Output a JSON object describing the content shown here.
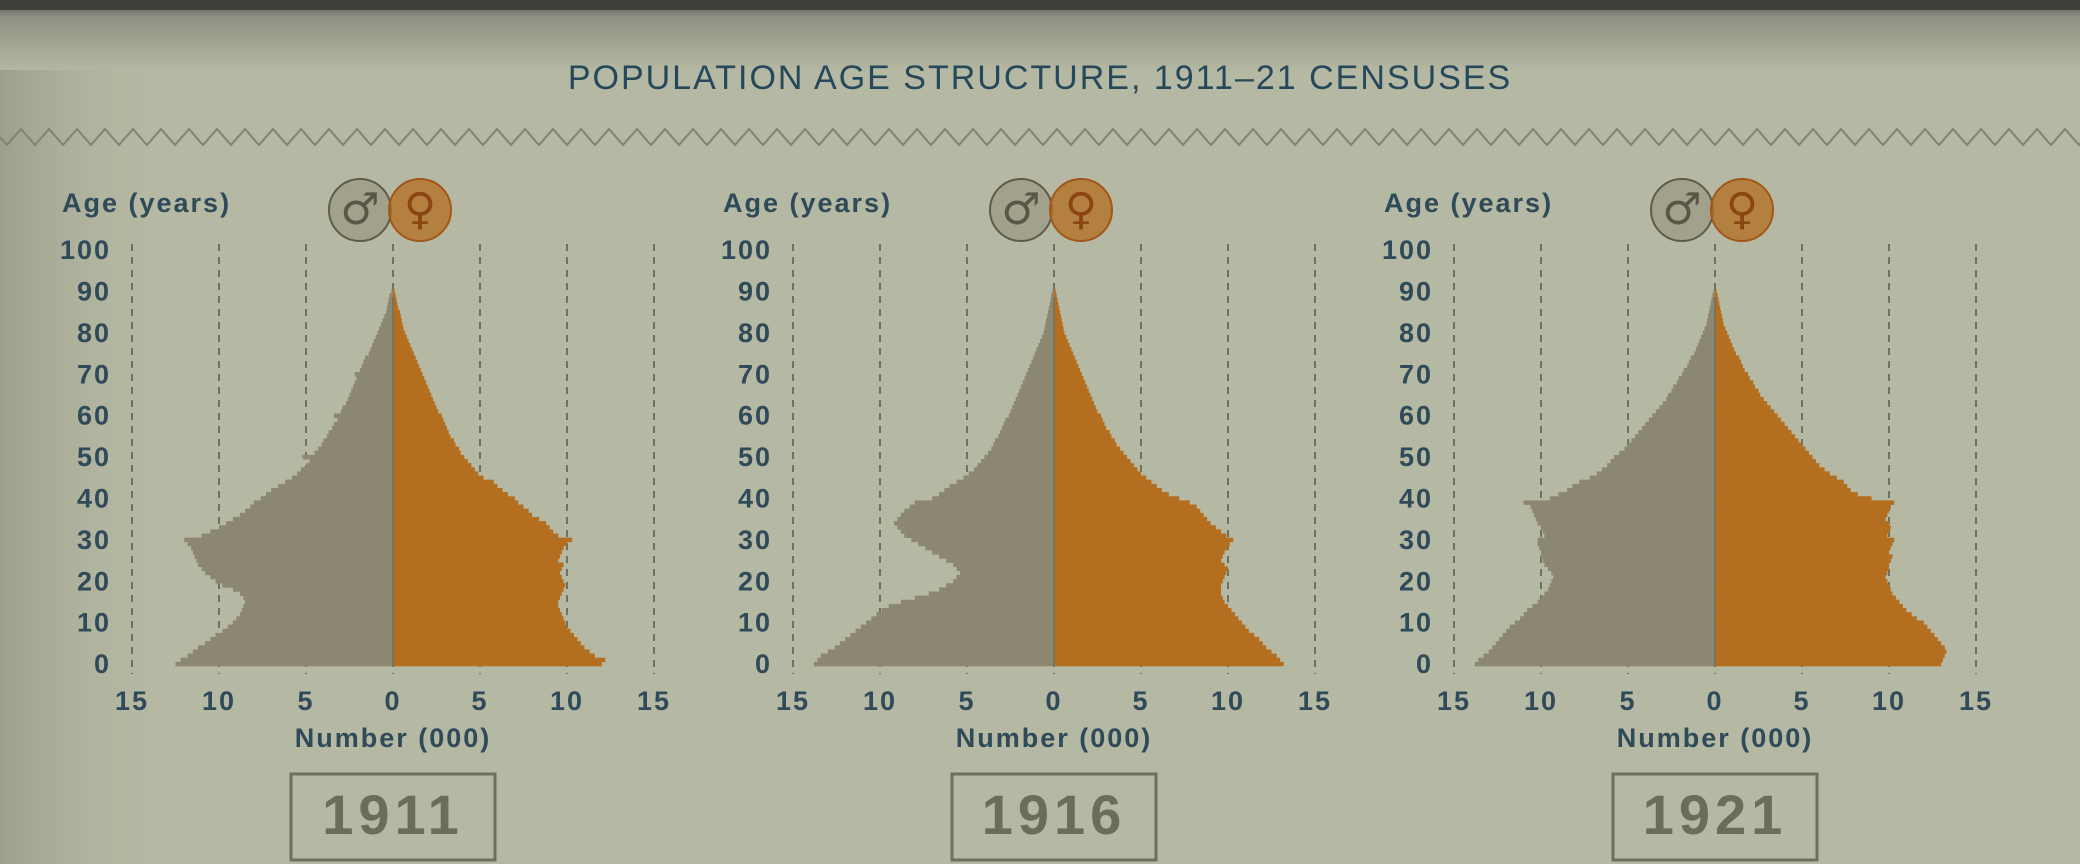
{
  "title": "POPULATION AGE STRUCTURE, 1911–21 CENSUSES",
  "chart_data": [
    {
      "type": "pyramid",
      "title": "1911",
      "x_label": "Number (000)",
      "y_label": "Age (years)",
      "y": [
        0,
        1,
        2,
        3,
        4,
        5,
        6,
        7,
        8,
        9,
        10,
        11,
        12,
        13,
        14,
        15,
        16,
        17,
        18,
        19,
        20,
        21,
        22,
        23,
        24,
        25,
        26,
        27,
        28,
        29,
        30,
        31,
        32,
        33,
        34,
        35,
        36,
        37,
        38,
        39,
        40,
        41,
        42,
        43,
        44,
        45,
        46,
        47,
        48,
        49,
        50,
        51,
        52,
        53,
        54,
        55,
        56,
        57,
        58,
        59,
        60,
        61,
        62,
        63,
        64,
        65,
        66,
        67,
        68,
        69,
        70,
        71,
        72,
        73,
        74,
        75,
        76,
        77,
        78,
        79,
        80,
        81,
        82,
        83,
        84,
        85,
        86,
        87,
        88,
        89,
        90
      ],
      "xlim": [
        -15,
        15
      ],
      "xticks": [
        {
          "value": -15,
          "label": "15"
        },
        {
          "value": -10,
          "label": "10"
        },
        {
          "value": -5,
          "label": "5"
        },
        0,
        5,
        10,
        15
      ],
      "ylim": [
        0,
        100
      ],
      "yticks": [
        0,
        10,
        20,
        30,
        40,
        50,
        60,
        70,
        80,
        90,
        100
      ],
      "grid": true,
      "series": [
        {
          "name": "♂",
          "color": "#8c8770",
          "values": [
            12.5,
            12.2,
            11.8,
            11.5,
            11.2,
            10.8,
            10.5,
            10.2,
            9.8,
            9.5,
            9.2,
            9.0,
            8.8,
            8.7,
            8.6,
            8.5,
            8.6,
            8.8,
            9.2,
            9.8,
            10.2,
            10.5,
            10.8,
            11.0,
            11.2,
            11.3,
            11.4,
            11.5,
            11.6,
            11.8,
            12.0,
            11.0,
            10.5,
            10.0,
            9.6,
            9.2,
            8.8,
            8.5,
            8.2,
            8.0,
            7.6,
            7.3,
            7.0,
            6.6,
            6.2,
            5.8,
            5.5,
            5.3,
            5.0,
            4.8,
            5.2,
            4.5,
            4.3,
            4.1,
            4.0,
            3.8,
            3.7,
            3.5,
            3.4,
            3.2,
            3.4,
            3.0,
            2.9,
            2.7,
            2.6,
            2.5,
            2.4,
            2.3,
            2.2,
            2.1,
            2.2,
            1.9,
            1.8,
            1.7,
            1.6,
            1.4,
            1.3,
            1.2,
            1.1,
            1.0,
            0.9,
            0.8,
            0.7,
            0.6,
            0.5,
            0.4,
            0.35,
            0.3,
            0.25,
            0.2,
            0.1
          ]
        },
        {
          "name": "♀",
          "color": "#b46e1f",
          "values": [
            12.0,
            12.2,
            11.6,
            11.3,
            11.0,
            10.8,
            10.6,
            10.4,
            10.2,
            10.0,
            9.9,
            9.8,
            9.7,
            9.6,
            9.5,
            9.5,
            9.6,
            9.7,
            9.8,
            9.9,
            9.8,
            9.7,
            9.6,
            9.7,
            9.8,
            9.5,
            9.6,
            9.7,
            9.8,
            10.0,
            10.3,
            9.5,
            9.2,
            9.0,
            8.8,
            8.4,
            8.0,
            7.8,
            7.5,
            7.2,
            7.0,
            6.6,
            6.3,
            6.0,
            5.8,
            5.2,
            4.9,
            4.7,
            4.5,
            4.3,
            4.1,
            3.9,
            3.8,
            3.6,
            3.5,
            3.3,
            3.2,
            3.1,
            3.0,
            2.9,
            2.8,
            2.6,
            2.5,
            2.4,
            2.3,
            2.2,
            2.1,
            2.0,
            1.9,
            1.8,
            1.7,
            1.6,
            1.5,
            1.4,
            1.3,
            1.2,
            1.1,
            1.0,
            0.9,
            0.8,
            0.7,
            0.6,
            0.55,
            0.5,
            0.45,
            0.4,
            0.3,
            0.25,
            0.2,
            0.15,
            0.1
          ]
        }
      ]
    },
    {
      "type": "pyramid",
      "title": "1916",
      "x_label": "Number (000)",
      "y_label": "Age (years)",
      "y": [
        0,
        1,
        2,
        3,
        4,
        5,
        6,
        7,
        8,
        9,
        10,
        11,
        12,
        13,
        14,
        15,
        16,
        17,
        18,
        19,
        20,
        21,
        22,
        23,
        24,
        25,
        26,
        27,
        28,
        29,
        30,
        31,
        32,
        33,
        34,
        35,
        36,
        37,
        38,
        39,
        40,
        41,
        42,
        43,
        44,
        45,
        46,
        47,
        48,
        49,
        50,
        51,
        52,
        53,
        54,
        55,
        56,
        57,
        58,
        59,
        60,
        61,
        62,
        63,
        64,
        65,
        66,
        67,
        68,
        69,
        70,
        71,
        72,
        73,
        74,
        75,
        76,
        77,
        78,
        79,
        80,
        81,
        82,
        83,
        84,
        85,
        86,
        87,
        88,
        89,
        90
      ],
      "xlim": [
        -15,
        15
      ],
      "xticks": [
        {
          "value": -15,
          "label": "15"
        },
        {
          "value": -10,
          "label": "10"
        },
        {
          "value": -5,
          "label": "5"
        },
        0,
        5,
        10,
        15
      ],
      "ylim": [
        0,
        100
      ],
      "yticks": [
        0,
        10,
        20,
        30,
        40,
        50,
        60,
        70,
        80,
        90,
        100
      ],
      "grid": true,
      "series": [
        {
          "name": "♂",
          "color": "#8c8770",
          "values": [
            13.8,
            13.6,
            13.4,
            13.0,
            12.6,
            12.3,
            12.0,
            11.7,
            11.4,
            11.1,
            10.8,
            10.5,
            10.2,
            9.9,
            9.5,
            8.8,
            8.0,
            7.2,
            6.6,
            6.2,
            5.8,
            5.6,
            5.4,
            5.6,
            5.8,
            6.2,
            6.6,
            7.0,
            7.4,
            7.8,
            8.2,
            8.6,
            8.8,
            9.0,
            9.2,
            9.0,
            8.8,
            8.6,
            8.3,
            8.0,
            7.0,
            6.6,
            6.3,
            6.0,
            5.6,
            5.2,
            4.9,
            4.6,
            4.4,
            4.2,
            4.0,
            3.8,
            3.6,
            3.5,
            3.4,
            3.2,
            3.1,
            3.0,
            2.9,
            2.8,
            2.6,
            2.5,
            2.4,
            2.3,
            2.2,
            2.1,
            2.0,
            1.9,
            1.8,
            1.7,
            1.6,
            1.5,
            1.4,
            1.3,
            1.2,
            1.1,
            1.0,
            0.9,
            0.8,
            0.7,
            0.6,
            0.55,
            0.5,
            0.45,
            0.4,
            0.35,
            0.3,
            0.25,
            0.2,
            0.15,
            0.1
          ]
        },
        {
          "name": "♀",
          "color": "#b46e1f",
          "values": [
            13.2,
            13.0,
            12.8,
            12.5,
            12.2,
            12.0,
            11.8,
            11.5,
            11.2,
            11.0,
            10.8,
            10.6,
            10.4,
            10.2,
            10.0,
            9.8,
            9.7,
            9.6,
            9.6,
            9.6,
            9.7,
            9.8,
            9.9,
            10.0,
            9.8,
            9.6,
            9.7,
            9.8,
            10.0,
            10.1,
            10.3,
            9.9,
            9.6,
            9.3,
            9.0,
            8.8,
            8.6,
            8.4,
            8.2,
            7.8,
            7.2,
            6.6,
            6.2,
            5.9,
            5.6,
            5.3,
            5.0,
            4.8,
            4.6,
            4.4,
            4.2,
            4.0,
            3.8,
            3.6,
            3.5,
            3.3,
            3.2,
            3.0,
            2.9,
            2.8,
            2.7,
            2.5,
            2.4,
            2.3,
            2.2,
            2.1,
            2.0,
            1.9,
            1.8,
            1.7,
            1.6,
            1.5,
            1.4,
            1.3,
            1.2,
            1.1,
            1.0,
            0.9,
            0.8,
            0.7,
            0.6,
            0.55,
            0.5,
            0.45,
            0.4,
            0.35,
            0.3,
            0.25,
            0.2,
            0.15,
            0.1
          ]
        }
      ]
    },
    {
      "type": "pyramid",
      "title": "1921",
      "x_label": "Number (000)",
      "y_label": "Age (years)",
      "y": [
        0,
        1,
        2,
        3,
        4,
        5,
        6,
        7,
        8,
        9,
        10,
        11,
        12,
        13,
        14,
        15,
        16,
        17,
        18,
        19,
        20,
        21,
        22,
        23,
        24,
        25,
        26,
        27,
        28,
        29,
        30,
        31,
        32,
        33,
        34,
        35,
        36,
        37,
        38,
        39,
        40,
        41,
        42,
        43,
        44,
        45,
        46,
        47,
        48,
        49,
        50,
        51,
        52,
        53,
        54,
        55,
        56,
        57,
        58,
        59,
        60,
        61,
        62,
        63,
        64,
        65,
        66,
        67,
        68,
        69,
        70,
        71,
        72,
        73,
        74,
        75,
        76,
        77,
        78,
        79,
        80,
        81,
        82,
        83,
        84,
        85,
        86,
        87,
        88,
        89,
        90
      ],
      "xlim": [
        -15,
        15
      ],
      "xticks": [
        {
          "value": -15,
          "label": "15"
        },
        {
          "value": -10,
          "label": "10"
        },
        {
          "value": -5,
          "label": "5"
        },
        0,
        5,
        10,
        15
      ],
      "ylim": [
        0,
        100
      ],
      "yticks": [
        0,
        10,
        20,
        30,
        40,
        50,
        60,
        70,
        80,
        90,
        100
      ],
      "grid": true,
      "series": [
        {
          "name": "♂",
          "color": "#8c8770",
          "values": [
            13.8,
            13.6,
            13.3,
            13.0,
            12.8,
            12.6,
            12.4,
            12.2,
            12.0,
            11.8,
            11.5,
            11.2,
            11.0,
            10.8,
            10.5,
            10.2,
            10.0,
            9.8,
            9.6,
            9.5,
            9.4,
            9.3,
            9.4,
            9.6,
            9.8,
            9.9,
            10.0,
            10.0,
            10.1,
            10.2,
            10.2,
            9.8,
            9.9,
            10.0,
            10.2,
            10.3,
            10.4,
            10.5,
            10.6,
            11.0,
            9.5,
            9.0,
            8.5,
            8.2,
            7.8,
            7.2,
            6.8,
            6.5,
            6.2,
            6.0,
            5.8,
            5.5,
            5.2,
            5.0,
            4.8,
            4.6,
            4.4,
            4.2,
            4.0,
            3.8,
            3.6,
            3.4,
            3.2,
            3.0,
            2.8,
            2.7,
            2.5,
            2.4,
            2.2,
            2.1,
            1.9,
            1.8,
            1.6,
            1.5,
            1.4,
            1.2,
            1.1,
            1.0,
            0.9,
            0.8,
            0.7,
            0.6,
            0.5,
            0.45,
            0.4,
            0.35,
            0.3,
            0.25,
            0.2,
            0.15,
            0.1
          ]
        },
        {
          "name": "♀",
          "color": "#b46e1f",
          "values": [
            13.0,
            13.1,
            13.2,
            13.3,
            13.2,
            13.0,
            12.8,
            12.6,
            12.4,
            12.2,
            12.0,
            11.6,
            11.3,
            11.0,
            10.8,
            10.6,
            10.4,
            10.2,
            10.1,
            10.0,
            9.9,
            9.8,
            9.9,
            10.0,
            10.0,
            10.1,
            10.2,
            10.0,
            10.1,
            10.2,
            10.3,
            9.9,
            10.0,
            10.1,
            10.0,
            9.8,
            9.9,
            10.0,
            10.1,
            10.3,
            9.0,
            8.2,
            7.8,
            7.6,
            7.4,
            7.0,
            6.6,
            6.3,
            6.0,
            5.8,
            5.6,
            5.4,
            5.2,
            5.0,
            4.8,
            4.6,
            4.4,
            4.2,
            4.0,
            3.8,
            3.6,
            3.4,
            3.2,
            3.0,
            2.8,
            2.6,
            2.5,
            2.3,
            2.2,
            2.0,
            1.9,
            1.7,
            1.6,
            1.5,
            1.4,
            1.2,
            1.1,
            1.0,
            0.9,
            0.8,
            0.7,
            0.6,
            0.5,
            0.45,
            0.4,
            0.35,
            0.3,
            0.25,
            0.2,
            0.15,
            0.1
          ]
        }
      ]
    }
  ]
}
